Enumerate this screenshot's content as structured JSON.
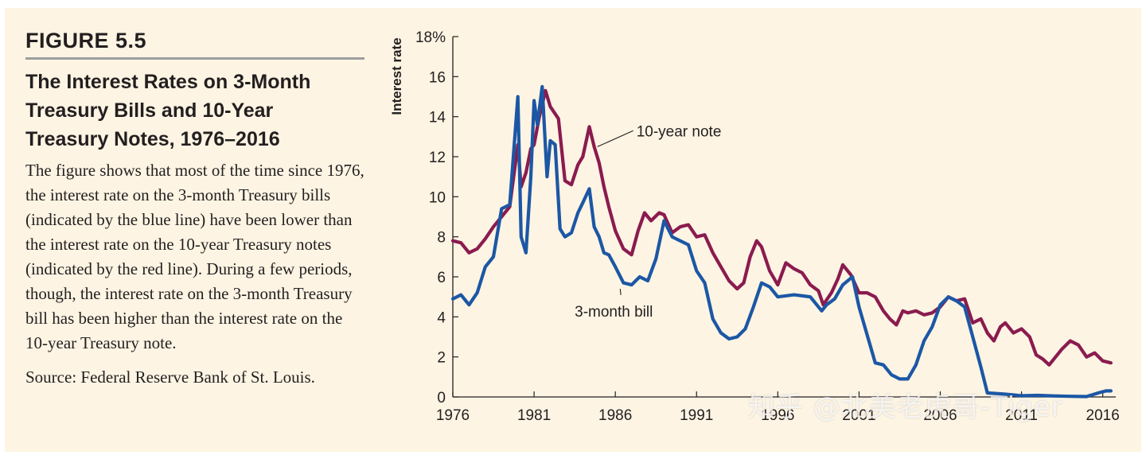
{
  "figure": {
    "number": "FIGURE 5.5",
    "title_lines": [
      "The Interest Rates on 3-Month",
      "Treasury Bills and 10-Year",
      "Treasury Notes, 1976–2016"
    ],
    "description": "The figure shows that most of the time since 1976, the interest rate on the 3-month Treasury bills (indicated by the blue line) have been lower than the interest rate on the 10-year Treasury notes (indicated by the red line). During a few periods, though, the interest rate on the 3-month Treasury bill has been higher than the interest rate on the 10-year Treasury note.",
    "source": "Source: Federal Reserve Bank of St. Louis."
  },
  "watermark": "知乎 @北美老虎哥-Tiger",
  "colors": {
    "background": "#fdf4e3",
    "ten_year": "#8a1b4f",
    "three_month": "#1c57a5",
    "axis": "#231f20"
  },
  "chart_data": {
    "type": "line",
    "ylabel": "Interest rate",
    "ylim": [
      0,
      18
    ],
    "xlim": [
      1976,
      2016.8
    ],
    "y_ticks": [
      0,
      2,
      4,
      6,
      8,
      10,
      12,
      14,
      16,
      18
    ],
    "y_tick_labels": [
      "0",
      "2",
      "4",
      "6",
      "8",
      "10",
      "12",
      "14",
      "16",
      "18%"
    ],
    "x_ticks": [
      1976,
      1981,
      1986,
      1991,
      1996,
      2001,
      2006,
      2011,
      2016
    ],
    "x_tick_labels": [
      "1976",
      "1981",
      "1986",
      "1991",
      "1996",
      "2001",
      "2006",
      "2011",
      "2016"
    ],
    "annotations": [
      {
        "text": "10-year note",
        "series": "10-year note",
        "point": [
          1984.9,
          12.5
        ],
        "label_at": [
          1987.3,
          13.3
        ]
      },
      {
        "text": "3-month bill",
        "series": "3-month bill",
        "point": [
          1986.3,
          5.4
        ],
        "label_at": [
          1983.5,
          4.3
        ]
      }
    ],
    "series": [
      {
        "name": "10-year note",
        "color": "#8a1b4f",
        "x": [
          1976.0,
          1976.5,
          1977.0,
          1977.5,
          1978.0,
          1978.5,
          1979.0,
          1979.5,
          1980.0,
          1980.2,
          1980.5,
          1980.8,
          1981.0,
          1981.3,
          1981.7,
          1982.0,
          1982.5,
          1982.9,
          1983.3,
          1983.7,
          1984.0,
          1984.4,
          1984.7,
          1985.0,
          1985.3,
          1985.6,
          1986.0,
          1986.5,
          1987.0,
          1987.4,
          1987.8,
          1988.2,
          1988.7,
          1989.0,
          1989.5,
          1990.0,
          1990.5,
          1991.0,
          1991.5,
          1992.0,
          1992.5,
          1993.0,
          1993.5,
          1993.9,
          1994.3,
          1994.7,
          1995.0,
          1995.5,
          1996.0,
          1996.5,
          1997.0,
          1997.5,
          1998.0,
          1998.5,
          1998.8,
          1999.3,
          1999.7,
          2000.0,
          2000.5,
          2001.0,
          2001.5,
          2002.0,
          2002.5,
          2002.9,
          2003.3,
          2003.7,
          2004.0,
          2004.5,
          2005.0,
          2005.5,
          2006.0,
          2006.5,
          2007.0,
          2007.5,
          2008.0,
          2008.5,
          2008.9,
          2009.3,
          2009.7,
          2010.0,
          2010.5,
          2011.0,
          2011.5,
          2011.9,
          2012.3,
          2012.7,
          2013.0,
          2013.5,
          2014.0,
          2014.5,
          2015.0,
          2015.5,
          2016.0,
          2016.5
        ],
        "values": [
          7.8,
          7.7,
          7.2,
          7.4,
          7.9,
          8.5,
          9.0,
          9.5,
          12.6,
          10.5,
          11.2,
          12.4,
          12.6,
          13.9,
          15.3,
          14.5,
          13.9,
          10.8,
          10.6,
          11.6,
          12.0,
          13.5,
          12.5,
          11.7,
          10.5,
          9.5,
          8.3,
          7.4,
          7.1,
          8.3,
          9.2,
          8.8,
          9.2,
          9.1,
          8.2,
          8.5,
          8.6,
          8.0,
          8.1,
          7.2,
          6.5,
          5.8,
          5.4,
          5.7,
          7.0,
          7.8,
          7.5,
          6.3,
          5.6,
          6.7,
          6.4,
          6.2,
          5.6,
          5.3,
          4.6,
          5.2,
          5.9,
          6.6,
          6.1,
          5.2,
          5.2,
          5.0,
          4.3,
          3.9,
          3.6,
          4.3,
          4.2,
          4.3,
          4.1,
          4.2,
          4.5,
          5.0,
          4.8,
          4.9,
          3.7,
          3.9,
          3.2,
          2.8,
          3.5,
          3.7,
          3.2,
          3.4,
          3.0,
          2.1,
          1.9,
          1.6,
          1.9,
          2.4,
          2.8,
          2.6,
          2.0,
          2.2,
          1.8,
          1.7
        ]
      },
      {
        "name": "3-month bill",
        "color": "#1c57a5",
        "x": [
          1976.0,
          1976.5,
          1977.0,
          1977.5,
          1978.0,
          1978.5,
          1979.0,
          1979.5,
          1980.0,
          1980.2,
          1980.5,
          1980.8,
          1981.0,
          1981.2,
          1981.5,
          1981.8,
          1982.0,
          1982.3,
          1982.6,
          1982.9,
          1983.3,
          1983.7,
          1984.0,
          1984.4,
          1984.7,
          1985.0,
          1985.3,
          1985.6,
          1986.0,
          1986.5,
          1987.0,
          1987.5,
          1988.0,
          1988.5,
          1989.0,
          1989.5,
          1990.0,
          1990.5,
          1991.0,
          1991.5,
          1992.0,
          1992.5,
          1993.0,
          1993.5,
          1994.0,
          1994.5,
          1995.0,
          1995.5,
          1996.0,
          1997.0,
          1998.0,
          1998.7,
          1999.0,
          1999.5,
          2000.0,
          2000.6,
          2001.0,
          2001.5,
          2002.0,
          2002.5,
          2003.0,
          2003.5,
          2004.0,
          2004.5,
          2005.0,
          2005.5,
          2006.0,
          2006.5,
          2007.0,
          2007.5,
          2008.0,
          2008.5,
          2008.9,
          2009.3,
          2010.0,
          2011.0,
          2012.0,
          2013.0,
          2014.0,
          2015.0,
          2015.8,
          2016.2,
          2016.5
        ],
        "values": [
          4.9,
          5.1,
          4.6,
          5.2,
          6.5,
          7.0,
          9.4,
          9.6,
          15.0,
          8.0,
          7.2,
          11.0,
          14.8,
          13.6,
          15.5,
          11.0,
          12.8,
          12.6,
          8.4,
          8.0,
          8.2,
          9.2,
          9.7,
          10.4,
          8.5,
          8.0,
          7.2,
          7.1,
          6.5,
          5.7,
          5.6,
          6.0,
          5.8,
          6.9,
          8.8,
          8.0,
          7.8,
          7.6,
          6.3,
          5.7,
          3.9,
          3.2,
          2.9,
          3.0,
          3.4,
          4.5,
          5.7,
          5.5,
          5.0,
          5.1,
          5.0,
          4.3,
          4.6,
          4.9,
          5.6,
          6.0,
          4.5,
          3.1,
          1.7,
          1.6,
          1.1,
          0.9,
          0.9,
          1.6,
          2.8,
          3.5,
          4.6,
          5.0,
          4.8,
          4.5,
          3.0,
          1.5,
          0.2,
          0.18,
          0.14,
          0.06,
          0.08,
          0.05,
          0.03,
          0.02,
          0.22,
          0.3,
          0.3
        ]
      }
    ]
  }
}
